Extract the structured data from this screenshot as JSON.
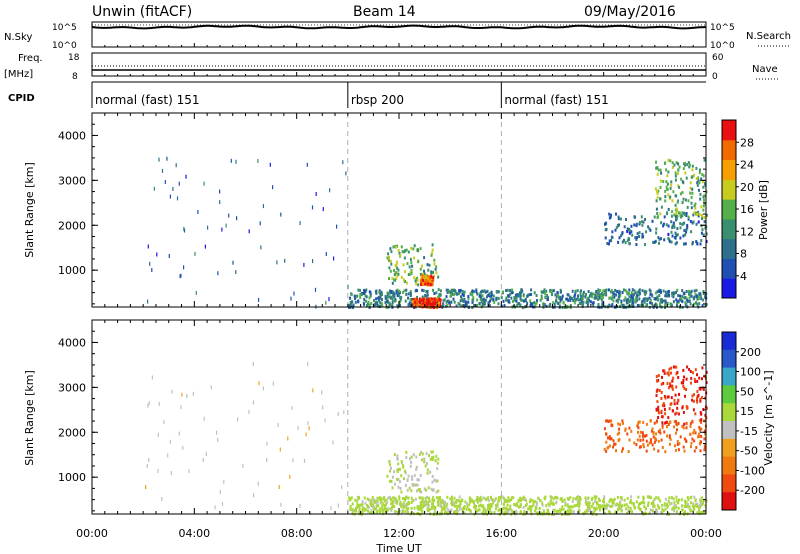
{
  "header": {
    "station": "Unwin (fitACF)",
    "beam": "Beam 14",
    "date": "09/May/2016"
  },
  "summary_panels": {
    "nsky": {
      "label": "N.Sky",
      "tick_top": "10^5",
      "tick_bottom": "10^0",
      "right_label": "N.Search",
      "right_tick_top": "10^5",
      "right_tick_bottom": "10^0"
    },
    "freq": {
      "label_line1": "Freq.",
      "label_line2": "[MHz]",
      "tick_top": "18",
      "tick_bottom": "8",
      "right_label": "Nave",
      "right_tick_top": "60",
      "right_tick_bottom": "0"
    },
    "cpid": {
      "label": "CPID",
      "segments": [
        {
          "name": "normal (fast) 151",
          "start_h": 0
        },
        {
          "name": "rbsp 200",
          "start_h": 10
        },
        {
          "name": "normal (fast) 151",
          "start_h": 16
        }
      ]
    }
  },
  "axes": {
    "xlabel": "Time UT",
    "xticks": [
      "00:00",
      "04:00",
      "08:00",
      "12:00",
      "16:00",
      "20:00",
      "00:00"
    ],
    "xlim_hours": [
      0,
      24
    ],
    "ylabel": "Slant Range [km]",
    "yticks": [
      "1000",
      "2000",
      "3000",
      "4000"
    ],
    "ylim_km": [
      180,
      4500
    ]
  },
  "colors": {
    "power_scale": [
      "#1a1ae6",
      "#1f4fb0",
      "#2e6f8e",
      "#3a8f6e",
      "#55b04a",
      "#c8cc1e",
      "#f5a000",
      "#f06a00",
      "#e81010"
    ],
    "velocity_scale": [
      "#1a2bd6",
      "#2a58c8",
      "#3aa6c8",
      "#5ccc3e",
      "#a8d83a",
      "#c0c0c0",
      "#f0a020",
      "#f07a10",
      "#f04a10",
      "#e01010"
    ]
  },
  "chart_data": [
    {
      "type": "heatmap",
      "title": "Power",
      "xlabel": "",
      "ylabel": "Slant Range [km]",
      "colorbar_label": "Power [dB]",
      "colorbar_ticks": [
        "4",
        "8",
        "12",
        "16",
        "20",
        "24",
        "28"
      ],
      "colorbar_range": [
        0,
        30
      ],
      "features": [
        {
          "region": "ground scatter band",
          "t_start_h": 10.0,
          "t_end_h": 24.0,
          "range_km": [
            200,
            600
          ],
          "power_db": 10
        },
        {
          "region": "strong echo patch",
          "t_start_h": 12.5,
          "t_end_h": 13.6,
          "range_km": [
            200,
            400
          ],
          "power_db": 28
        },
        {
          "region": "main patch",
          "t_start_h": 11.5,
          "t_end_h": 13.5,
          "range_km": [
            700,
            1600
          ],
          "power_db": 14
        },
        {
          "region": "core",
          "t_start_h": 12.8,
          "t_end_h": 13.3,
          "range_km": [
            700,
            900
          ],
          "power_db": 24
        },
        {
          "region": "late band",
          "t_start_h": 20.0,
          "t_end_h": 24.0,
          "range_km": [
            1600,
            2300
          ],
          "power_db": 8
        },
        {
          "region": "late cluster",
          "t_start_h": 22.0,
          "t_end_h": 24.0,
          "range_km": [
            2200,
            3500
          ],
          "power_db": 14
        },
        {
          "region": "sparse early echoes",
          "t_start_h": 2.0,
          "t_end_h": 10.0,
          "range_km": [
            200,
            3600
          ],
          "power_db": 6
        }
      ]
    },
    {
      "type": "heatmap",
      "title": "Velocity",
      "xlabel": "Time UT",
      "ylabel": "Slant Range [km]",
      "colorbar_label": "Velocity [m s^-1]",
      "colorbar_ticks": [
        "200",
        "100",
        "50",
        "15",
        "-15",
        "-50",
        "-100",
        "-200"
      ],
      "colorbar_range": [
        -250,
        250
      ],
      "features": [
        {
          "region": "ground scatter band",
          "t_start_h": 10.0,
          "t_end_h": 24.0,
          "range_km": [
            200,
            600
          ],
          "velocity_ms": 20
        },
        {
          "region": "main patch (ground flag)",
          "t_start_h": 11.5,
          "t_end_h": 13.5,
          "range_km": [
            700,
            1600
          ],
          "velocity_ms": 0
        },
        {
          "region": "late band",
          "t_start_h": 20.0,
          "t_end_h": 24.0,
          "range_km": [
            1600,
            2300
          ],
          "velocity_ms": -150
        },
        {
          "region": "late cluster",
          "t_start_h": 22.0,
          "t_end_h": 24.0,
          "range_km": [
            2200,
            3500
          ],
          "velocity_ms": -200
        },
        {
          "region": "sparse early echoes",
          "t_start_h": 2.0,
          "t_end_h": 10.0,
          "range_km": [
            200,
            3600
          ],
          "velocity_ms": -30
        }
      ]
    }
  ]
}
